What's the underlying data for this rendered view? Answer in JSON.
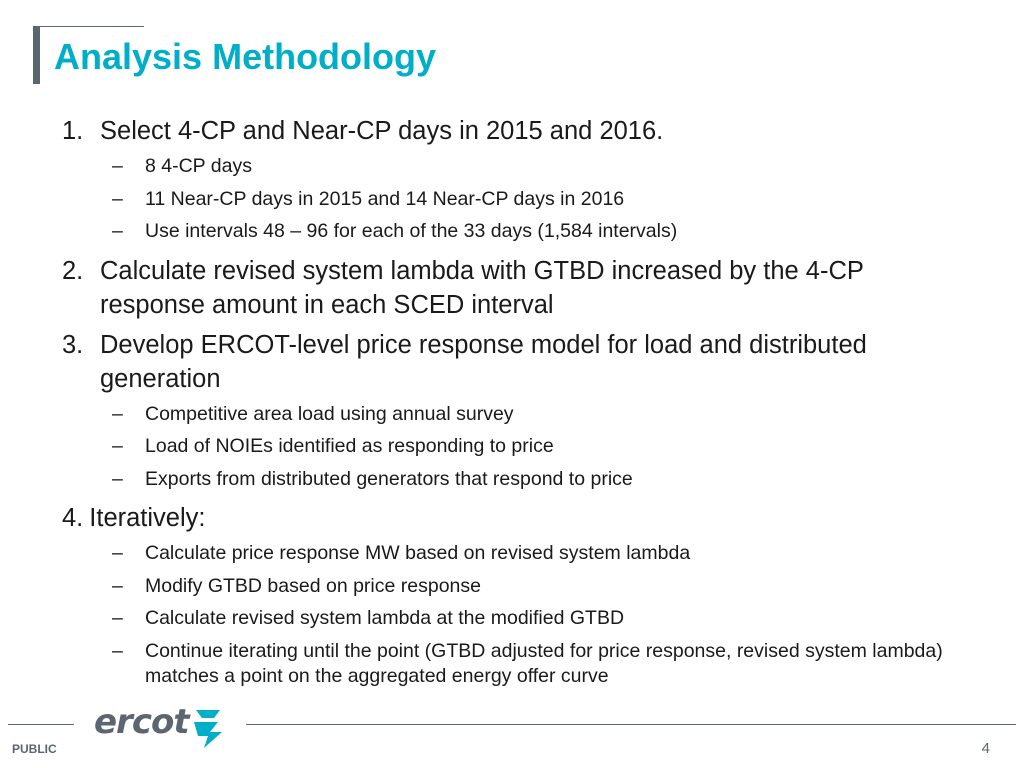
{
  "slide": {
    "title": "Analysis Methodology",
    "items": [
      {
        "number": "1.",
        "text": "Select 4-CP and Near-CP days in 2015 and 2016.",
        "subs": [
          "8 4-CP days",
          "11 Near-CP days in 2015 and 14 Near-CP days in 2016",
          "Use intervals 48 – 96 for each of the 33 days (1,584 intervals)"
        ]
      },
      {
        "number": "2.",
        "text": "Calculate revised system lambda with GTBD increased by the 4-CP response amount in each SCED interval",
        "subs": []
      },
      {
        "number": "3.",
        "text": "Develop ERCOT-level price response model for load and distributed generation",
        "subs": [
          "Competitive area load using annual survey",
          "Load of NOIEs identified as responding to price",
          "Exports from distributed generators that respond to price"
        ]
      },
      {
        "number": "4.",
        "text": "Iteratively:",
        "subs": [
          "Calculate price response MW based on revised system lambda",
          "Modify GTBD based on price response",
          "Calculate revised system lambda at the modified GTBD",
          "Continue iterating until the point (GTBD adjusted for price response, revised system lambda) matches a point on the aggregated energy offer curve"
        ]
      }
    ],
    "dash": "–"
  },
  "footer": {
    "logo_text": "ercot",
    "classification": "PUBLIC",
    "page_number": "4"
  },
  "colors": {
    "title": "#00aec7",
    "accent_gray": "#5b6670",
    "logo_bolt": "#00aec7"
  }
}
